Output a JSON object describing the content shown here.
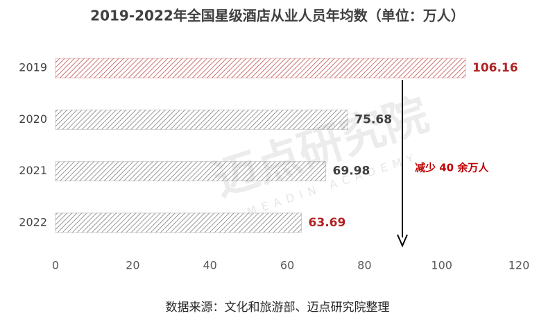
{
  "chart_data": {
    "type": "hbar",
    "title": "2019-2022年全国星级酒店从业人员年均数（单位：万人）",
    "categories": [
      "2019",
      "2020",
      "2021",
      "2022"
    ],
    "values": [
      106.16,
      75.68,
      69.98,
      63.69
    ],
    "colors": [
      "#c0504d",
      "#7f7f7f",
      "#7f7f7f",
      "#7f7f7f"
    ],
    "label_colors": [
      "#b22222",
      "#404040",
      "#404040",
      "#b22222"
    ],
    "xlim": [
      0,
      120
    ],
    "xticks": [
      0,
      20,
      40,
      60,
      80,
      100,
      120
    ],
    "annotation": "减少 40 余万人",
    "source": "数据来源：文化和旅游部、迈点研究院整理",
    "watermark": "迈点研究院",
    "watermark_sub": "MEADIN ACADEMY"
  }
}
